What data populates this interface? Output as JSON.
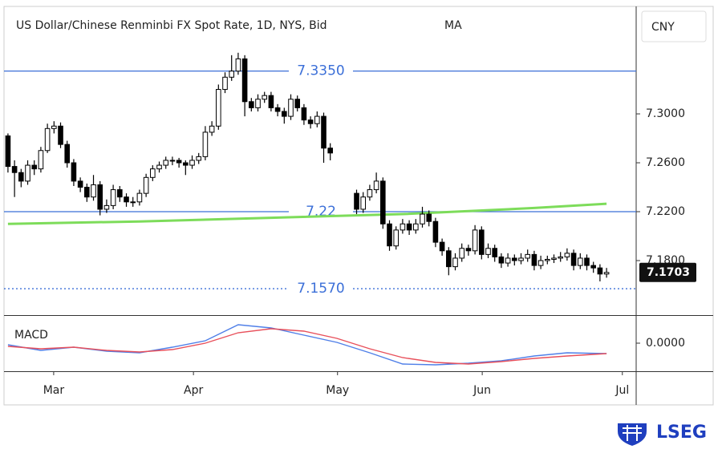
{
  "chart_data": {
    "type": "candlestick",
    "title": "US Dollar/Chinese Renminbi FX Spot Rate, 1D, NYS, Bid",
    "indicator_label": "MA",
    "currency": "CNY",
    "brand": "LSEG",
    "xlim": [
      -0.6,
      95.5
    ],
    "xticks": [
      {
        "value": 6.95,
        "label": "Mar"
      },
      {
        "value": 28.2,
        "label": "Apr"
      },
      {
        "value": 50.1,
        "label": "May"
      },
      {
        "value": 72.1,
        "label": "Jun"
      },
      {
        "value": 93.4,
        "label": "Jul"
      }
    ],
    "ylim": [
      7.1354,
      7.3879
    ],
    "yticks": [
      {
        "value": 7.3,
        "label": "7.3000"
      },
      {
        "value": 7.26,
        "label": "7.2600"
      },
      {
        "value": 7.22,
        "label": "7.2200"
      },
      {
        "value": 7.18,
        "label": "7.1800"
      }
    ],
    "up_color": "#ffffff",
    "down_color": "#000000",
    "x": [
      0,
      1,
      2,
      3,
      4,
      5,
      6,
      7,
      8,
      9,
      10,
      11,
      12,
      13,
      14,
      15,
      16,
      17,
      18,
      19,
      20,
      21,
      22,
      23,
      24,
      25,
      26,
      27,
      28,
      29,
      30,
      31,
      32,
      33,
      34,
      35,
      36,
      37,
      38,
      39,
      40,
      41,
      42,
      43,
      44,
      45,
      46,
      47,
      48,
      49,
      53,
      54,
      55,
      56,
      57,
      58,
      59,
      60,
      61,
      62,
      63,
      64,
      65,
      66,
      67,
      68,
      69,
      70,
      71,
      72,
      73,
      74,
      75,
      76,
      77,
      78,
      79,
      80,
      81,
      82,
      83,
      84,
      85,
      86,
      87,
      88,
      89,
      90,
      91
    ],
    "ohlc": [
      [
        7.282,
        7.284,
        7.252,
        7.257
      ],
      [
        7.257,
        7.262,
        7.232,
        7.252
      ],
      [
        7.252,
        7.255,
        7.24,
        7.245
      ],
      [
        7.245,
        7.262,
        7.242,
        7.258
      ],
      [
        7.258,
        7.262,
        7.25,
        7.255
      ],
      [
        7.255,
        7.273,
        7.252,
        7.27
      ],
      [
        7.27,
        7.292,
        7.268,
        7.288
      ],
      [
        7.288,
        7.294,
        7.284,
        7.29
      ],
      [
        7.29,
        7.293,
        7.272,
        7.275
      ],
      [
        7.275,
        7.278,
        7.256,
        7.26
      ],
      [
        7.26,
        7.263,
        7.241,
        7.245
      ],
      [
        7.245,
        7.248,
        7.236,
        7.24
      ],
      [
        7.24,
        7.243,
        7.228,
        7.232
      ],
      [
        7.232,
        7.25,
        7.229,
        7.242
      ],
      [
        7.242,
        7.245,
        7.217,
        7.222
      ],
      [
        7.222,
        7.23,
        7.219,
        7.225
      ],
      [
        7.225,
        7.242,
        7.222,
        7.238
      ],
      [
        7.238,
        7.241,
        7.228,
        7.232
      ],
      [
        7.232,
        7.235,
        7.224,
        7.228
      ],
      [
        7.228,
        7.232,
        7.224,
        7.228
      ],
      [
        7.228,
        7.238,
        7.225,
        7.235
      ],
      [
        7.235,
        7.251,
        7.232,
        7.248
      ],
      [
        7.248,
        7.258,
        7.245,
        7.255
      ],
      [
        7.255,
        7.261,
        7.252,
        7.258
      ],
      [
        7.258,
        7.265,
        7.255,
        7.262
      ],
      [
        7.262,
        7.265,
        7.258,
        7.262
      ],
      [
        7.262,
        7.264,
        7.256,
        7.26
      ],
      [
        7.26,
        7.262,
        7.25,
        7.258
      ],
      [
        7.258,
        7.266,
        7.255,
        7.262
      ],
      [
        7.262,
        7.268,
        7.259,
        7.265
      ],
      [
        7.265,
        7.29,
        7.262,
        7.285
      ],
      [
        7.285,
        7.294,
        7.282,
        7.29
      ],
      [
        7.29,
        7.324,
        7.287,
        7.32
      ],
      [
        7.32,
        7.334,
        7.317,
        7.33
      ],
      [
        7.33,
        7.348,
        7.327,
        7.335
      ],
      [
        7.335,
        7.35,
        7.332,
        7.345
      ],
      [
        7.345,
        7.348,
        7.298,
        7.31
      ],
      [
        7.31,
        7.313,
        7.302,
        7.305
      ],
      [
        7.305,
        7.316,
        7.302,
        7.312
      ],
      [
        7.312,
        7.318,
        7.309,
        7.315
      ],
      [
        7.315,
        7.318,
        7.302,
        7.305
      ],
      [
        7.305,
        7.308,
        7.298,
        7.302
      ],
      [
        7.302,
        7.305,
        7.292,
        7.298
      ],
      [
        7.298,
        7.316,
        7.295,
        7.312
      ],
      [
        7.312,
        7.315,
        7.302,
        7.305
      ],
      [
        7.305,
        7.308,
        7.291,
        7.295
      ],
      [
        7.295,
        7.298,
        7.288,
        7.292
      ],
      [
        7.292,
        7.302,
        7.289,
        7.298
      ],
      [
        7.298,
        7.301,
        7.26,
        7.272
      ],
      [
        7.272,
        7.276,
        7.262,
        7.268
      ],
      [
        7.235,
        7.238,
        7.218,
        7.222
      ],
      [
        7.222,
        7.236,
        7.219,
        7.232
      ],
      [
        7.232,
        7.242,
        7.229,
        7.238
      ],
      [
        7.238,
        7.252,
        7.235,
        7.245
      ],
      [
        7.245,
        7.248,
        7.206,
        7.21
      ],
      [
        7.21,
        7.213,
        7.188,
        7.192
      ],
      [
        7.192,
        7.208,
        7.189,
        7.205
      ],
      [
        7.205,
        7.214,
        7.202,
        7.21
      ],
      [
        7.21,
        7.213,
        7.201,
        7.205
      ],
      [
        7.205,
        7.214,
        7.202,
        7.21
      ],
      [
        7.21,
        7.224,
        7.207,
        7.218
      ],
      [
        7.218,
        7.221,
        7.208,
        7.212
      ],
      [
        7.212,
        7.215,
        7.191,
        7.195
      ],
      [
        7.195,
        7.198,
        7.184,
        7.188
      ],
      [
        7.188,
        7.191,
        7.168,
        7.175
      ],
      [
        7.175,
        7.186,
        7.172,
        7.182
      ],
      [
        7.182,
        7.194,
        7.179,
        7.19
      ],
      [
        7.19,
        7.193,
        7.184,
        7.188
      ],
      [
        7.188,
        7.209,
        7.185,
        7.205
      ],
      [
        7.205,
        7.208,
        7.181,
        7.185
      ],
      [
        7.185,
        7.194,
        7.182,
        7.19
      ],
      [
        7.19,
        7.193,
        7.179,
        7.183
      ],
      [
        7.183,
        7.186,
        7.174,
        7.178
      ],
      [
        7.178,
        7.186,
        7.175,
        7.182
      ],
      [
        7.182,
        7.185,
        7.176,
        7.18
      ],
      [
        7.18,
        7.186,
        7.177,
        7.182
      ],
      [
        7.182,
        7.189,
        7.179,
        7.185
      ],
      [
        7.185,
        7.188,
        7.172,
        7.176
      ],
      [
        7.176,
        7.184,
        7.173,
        7.18
      ],
      [
        7.18,
        7.184,
        7.177,
        7.181
      ],
      [
        7.181,
        7.185,
        7.178,
        7.182
      ],
      [
        7.182,
        7.187,
        7.179,
        7.183
      ],
      [
        7.183,
        7.19,
        7.18,
        7.186
      ],
      [
        7.186,
        7.189,
        7.172,
        7.176
      ],
      [
        7.176,
        7.186,
        7.173,
        7.182
      ],
      [
        7.182,
        7.185,
        7.172,
        7.176
      ],
      [
        7.176,
        7.179,
        7.17,
        7.174
      ],
      [
        7.174,
        7.177,
        7.163,
        7.169
      ],
      [
        7.169,
        7.174,
        7.166,
        7.1703
      ]
    ],
    "ma": {
      "color": "#7ddc5a",
      "x": [
        0,
        20,
        40,
        60,
        80,
        91
      ],
      "values": [
        7.21,
        7.212,
        7.215,
        7.218,
        7.223,
        7.2265
      ]
    },
    "hlines": [
      {
        "value": 7.335,
        "label": "7.3350",
        "color": "#3b6fd8",
        "style": "solid"
      },
      {
        "value": 7.22,
        "label": "7.22",
        "color": "#3b6fd8",
        "style": "solid"
      },
      {
        "value": 7.157,
        "label": "7.1570",
        "color": "#3b6fd8",
        "style": "dotted"
      }
    ],
    "last_price": {
      "value": 7.1703,
      "label": "7.1703"
    },
    "macd": {
      "label": "MACD",
      "ylim": [
        -0.035,
        0.033
      ],
      "yticks": [
        {
          "value": 0,
          "label": "0.0000"
        }
      ],
      "x": [
        0,
        5,
        10,
        15,
        20,
        25,
        30,
        35,
        40,
        45,
        50,
        55,
        60,
        65,
        70,
        75,
        80,
        85,
        91
      ],
      "series": [
        {
          "color": "#4f7fe8",
          "values": [
            -0.002,
            -0.009,
            -0.005,
            -0.01,
            -0.012,
            -0.005,
            0.003,
            0.023,
            0.019,
            0.01,
            0.001,
            -0.012,
            -0.026,
            -0.027,
            -0.025,
            -0.022,
            -0.016,
            -0.012,
            -0.013
          ]
        },
        {
          "color": "#e8505b",
          "values": [
            -0.004,
            -0.007,
            -0.005,
            -0.009,
            -0.011,
            -0.008,
            0.0,
            0.013,
            0.018,
            0.015,
            0.006,
            -0.007,
            -0.018,
            -0.024,
            -0.026,
            -0.023,
            -0.019,
            -0.016,
            -0.013
          ]
        }
      ]
    }
  }
}
